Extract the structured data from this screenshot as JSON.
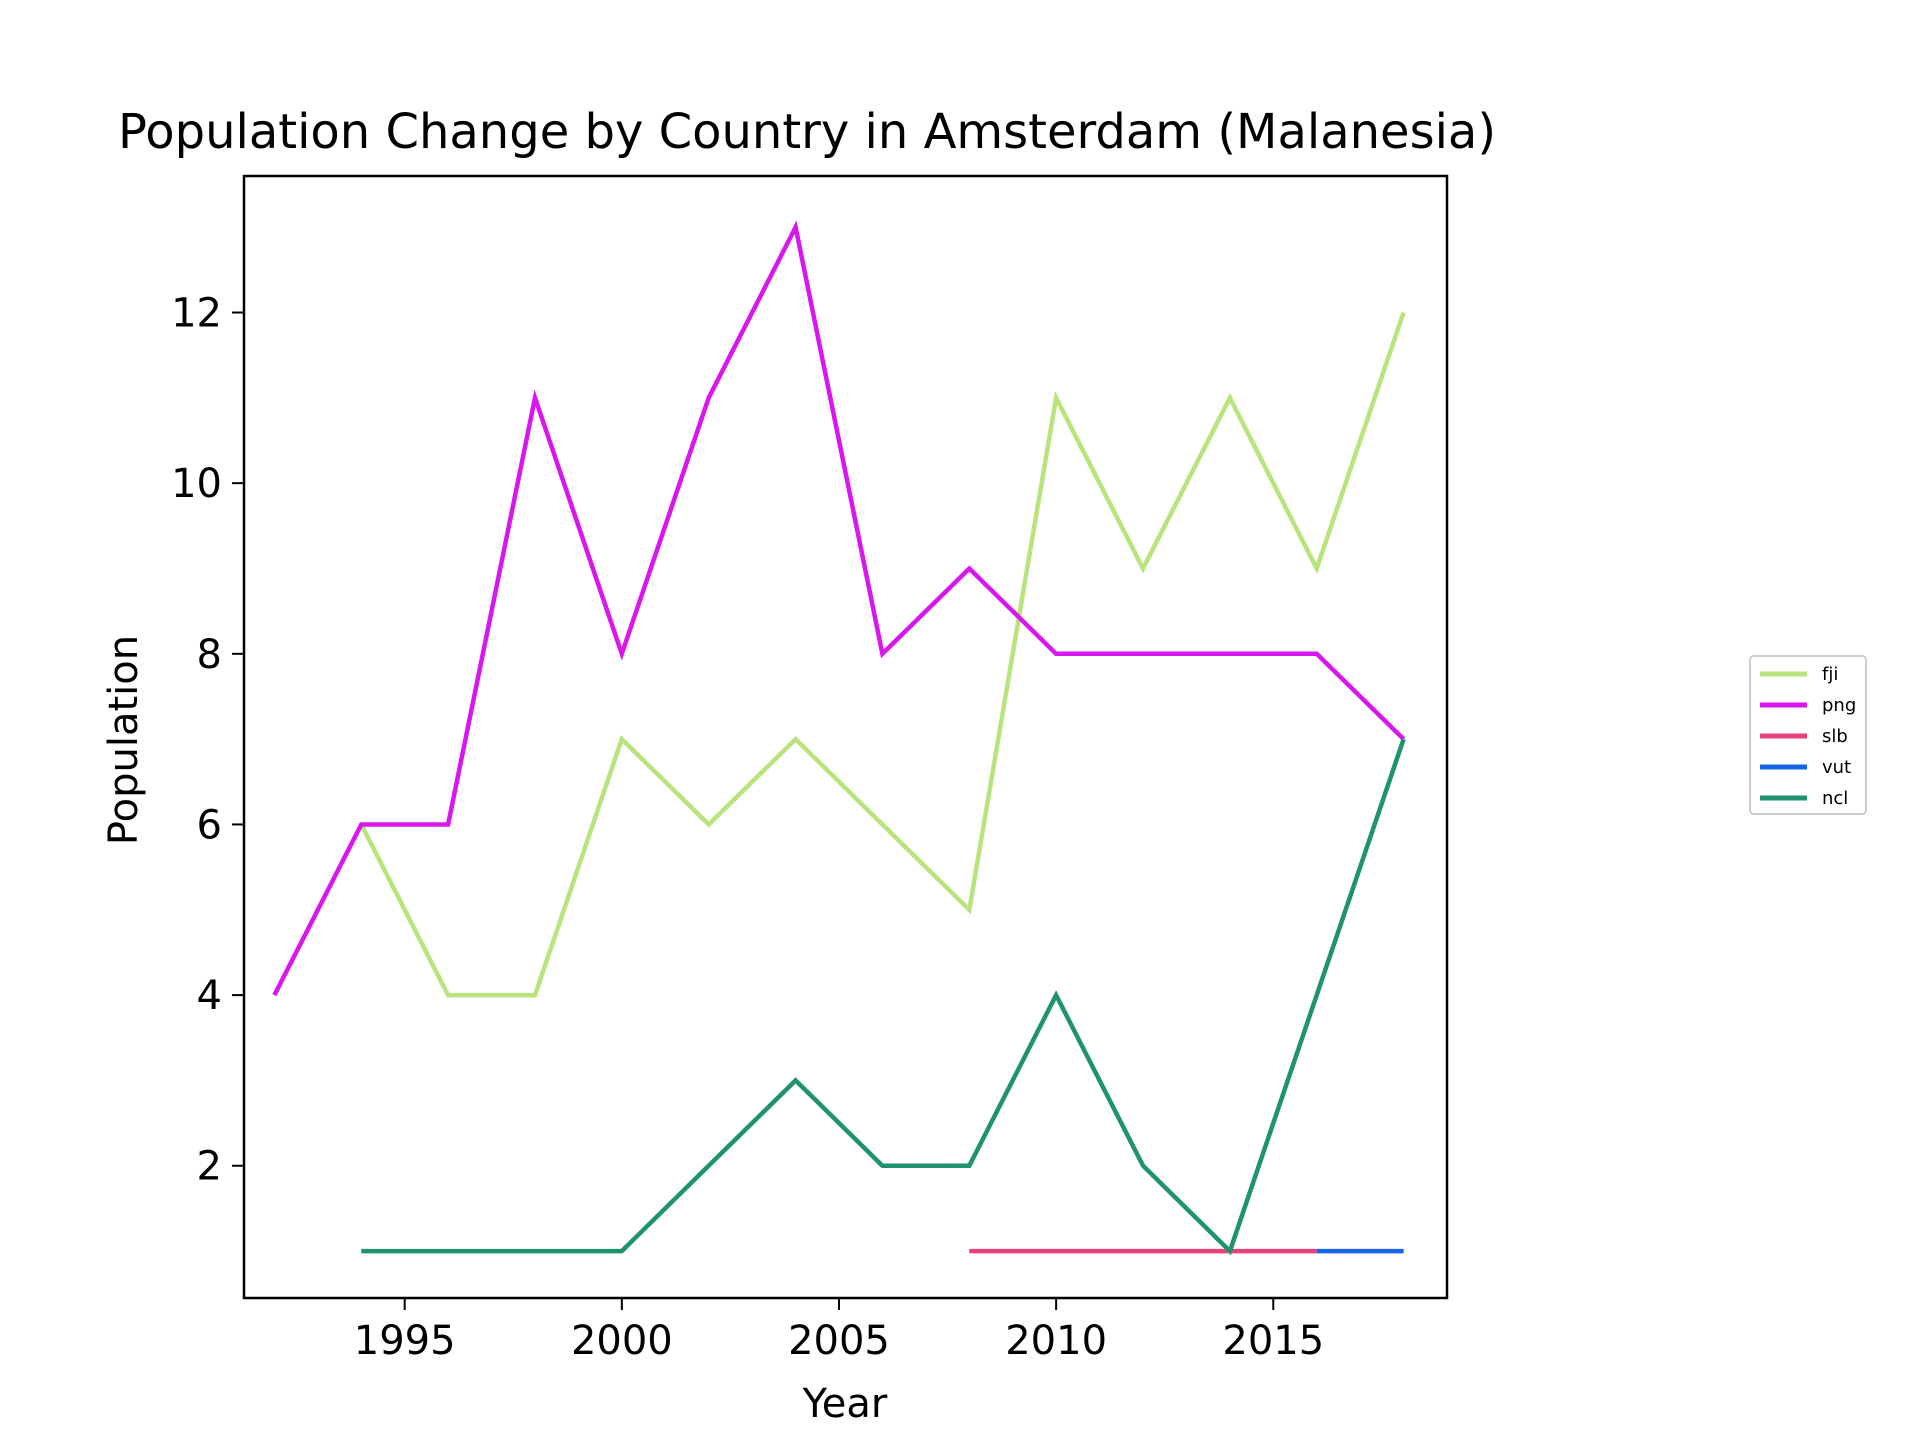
{
  "chart_data": {
    "type": "line",
    "title": "Population Change by Country in Amsterdam (Malanesia)",
    "xlabel": "Year",
    "ylabel": "Population",
    "xlim": [
      1991.3,
      2019.0
    ],
    "ylim": [
      0.45,
      13.6
    ],
    "xticks": [
      1995,
      2000,
      2005,
      2010,
      2015
    ],
    "yticks": [
      2,
      4,
      6,
      8,
      10,
      12
    ],
    "grid": false,
    "legend_position": "center-right, outside plot",
    "series": [
      {
        "name": "fji",
        "color": "#b9e37c",
        "x": [
          1994,
          1996,
          1998,
          2000,
          2002,
          2004,
          2006,
          2008,
          2010,
          2012,
          2014,
          2016,
          2018
        ],
        "y": [
          6,
          4,
          4,
          7,
          6,
          7,
          6,
          5,
          11,
          9,
          11,
          9,
          12
        ]
      },
      {
        "name": "png",
        "color": "#d916ef",
        "x": [
          1992,
          1994,
          1996,
          1998,
          2000,
          2002,
          2004,
          2006,
          2008,
          2010,
          2012,
          2014,
          2016,
          2018
        ],
        "y": [
          4,
          6,
          6,
          11,
          8,
          11,
          13,
          8,
          9,
          8,
          8,
          8,
          8,
          7
        ]
      },
      {
        "name": "slb",
        "color": "#e8417b",
        "x": [
          2008,
          2010,
          2012,
          2014,
          2016
        ],
        "y": [
          1,
          1,
          1,
          1,
          1
        ]
      },
      {
        "name": "vut",
        "color": "#1565e6",
        "x": [
          2016,
          2018
        ],
        "y": [
          1,
          1
        ]
      },
      {
        "name": "ncl",
        "color": "#1f9270",
        "x": [
          1994,
          1996,
          1998,
          2000,
          2002,
          2004,
          2006,
          2008,
          2010,
          2012,
          2014,
          2016,
          2018
        ],
        "y": [
          1,
          1,
          1,
          1,
          2,
          3,
          2,
          2,
          4,
          2,
          1,
          4,
          7
        ]
      }
    ]
  }
}
